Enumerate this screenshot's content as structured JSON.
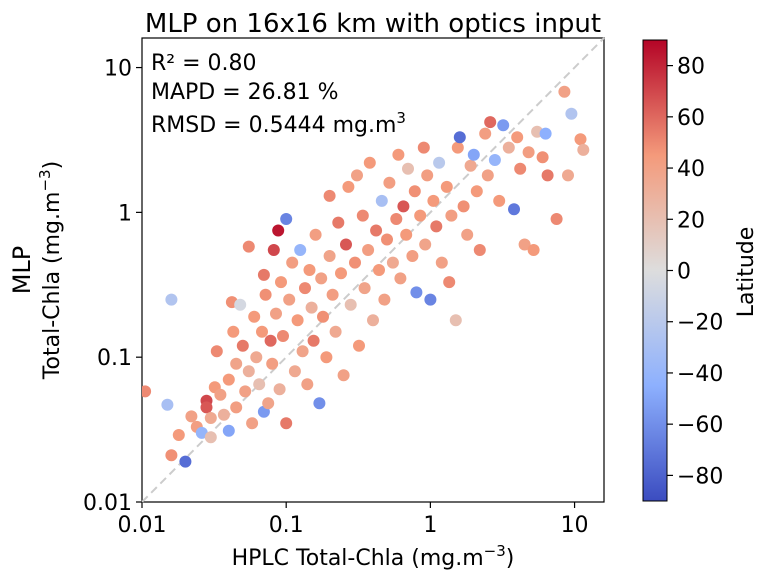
{
  "chart_data": {
    "type": "scatter",
    "title": "MLP on 16x16 km with optics input",
    "xlabel": "HPLC Total-Chla (mg.m",
    "xlabel_sup": "−3",
    "xlabel_end": ")",
    "ylabel_line1": "MLP",
    "ylabel_line2": "Total-Chla (mg.m",
    "ylabel_sup": "−3",
    "ylabel_end": ")",
    "x_scale": "log",
    "y_scale": "log",
    "xlim": [
      0.01,
      16
    ],
    "ylim": [
      0.01,
      16
    ],
    "x_ticks": [
      0.01,
      0.1,
      1,
      10
    ],
    "x_tick_labels": [
      "0.01",
      "0.1",
      "1",
      "10"
    ],
    "y_ticks": [
      0.01,
      0.1,
      1,
      10
    ],
    "y_tick_labels": [
      "0.01",
      "0.1",
      "1",
      "10"
    ],
    "grid": false,
    "one_to_one_line": true,
    "annotations": {
      "r2": "R² = 0.80",
      "mapd": "MAPD = 26.81 %",
      "rmsd": "RMSD = 0.5444 mg.m",
      "rmsd_sup": "3"
    },
    "colorbar": {
      "label": "Latitude",
      "colormap": "coolwarm",
      "range": [
        -90,
        90
      ],
      "ticks": [
        80,
        60,
        40,
        20,
        0,
        -20,
        -40,
        -60,
        -80
      ],
      "tick_labels": [
        "80",
        "60",
        "40",
        "20",
        "0",
        "−20",
        "−40",
        "−60",
        "−80"
      ],
      "low_color": "#3b4cc0",
      "mid_color": "#dddddd",
      "high_color": "#b40426"
    },
    "points": [
      {
        "x": 0.0105,
        "y": 0.058,
        "lat": 50
      },
      {
        "x": 0.016,
        "y": 0.25,
        "lat": -25
      },
      {
        "x": 0.015,
        "y": 0.047,
        "lat": -30
      },
      {
        "x": 0.016,
        "y": 0.021,
        "lat": 48
      },
      {
        "x": 0.018,
        "y": 0.029,
        "lat": 45
      },
      {
        "x": 0.02,
        "y": 0.019,
        "lat": -75
      },
      {
        "x": 0.022,
        "y": 0.039,
        "lat": 40
      },
      {
        "x": 0.024,
        "y": 0.033,
        "lat": 42
      },
      {
        "x": 0.026,
        "y": 0.03,
        "lat": -40
      },
      {
        "x": 0.028,
        "y": 0.05,
        "lat": 70
      },
      {
        "x": 0.028,
        "y": 0.045,
        "lat": 65
      },
      {
        "x": 0.03,
        "y": 0.028,
        "lat": 20
      },
      {
        "x": 0.03,
        "y": 0.038,
        "lat": 35
      },
      {
        "x": 0.032,
        "y": 0.062,
        "lat": 45
      },
      {
        "x": 0.033,
        "y": 0.11,
        "lat": 50
      },
      {
        "x": 0.035,
        "y": 0.055,
        "lat": 40
      },
      {
        "x": 0.037,
        "y": 0.04,
        "lat": 30
      },
      {
        "x": 0.04,
        "y": 0.07,
        "lat": 45
      },
      {
        "x": 0.04,
        "y": 0.031,
        "lat": -50
      },
      {
        "x": 0.042,
        "y": 0.24,
        "lat": 48
      },
      {
        "x": 0.043,
        "y": 0.15,
        "lat": 45
      },
      {
        "x": 0.045,
        "y": 0.09,
        "lat": 38
      },
      {
        "x": 0.045,
        "y": 0.045,
        "lat": 42
      },
      {
        "x": 0.048,
        "y": 0.23,
        "lat": -5
      },
      {
        "x": 0.05,
        "y": 0.12,
        "lat": 55
      },
      {
        "x": 0.052,
        "y": 0.058,
        "lat": 40
      },
      {
        "x": 0.055,
        "y": 0.58,
        "lat": 50
      },
      {
        "x": 0.055,
        "y": 0.08,
        "lat": 30
      },
      {
        "x": 0.058,
        "y": 0.035,
        "lat": 40
      },
      {
        "x": 0.06,
        "y": 0.19,
        "lat": 45
      },
      {
        "x": 0.062,
        "y": 0.1,
        "lat": 35
      },
      {
        "x": 0.065,
        "y": 0.065,
        "lat": 20
      },
      {
        "x": 0.068,
        "y": 0.15,
        "lat": 45
      },
      {
        "x": 0.07,
        "y": 0.37,
        "lat": 55
      },
      {
        "x": 0.07,
        "y": 0.042,
        "lat": -55
      },
      {
        "x": 0.072,
        "y": 0.27,
        "lat": 48
      },
      {
        "x": 0.075,
        "y": 0.048,
        "lat": 38
      },
      {
        "x": 0.078,
        "y": 0.13,
        "lat": 60
      },
      {
        "x": 0.08,
        "y": 0.09,
        "lat": 42
      },
      {
        "x": 0.082,
        "y": 0.55,
        "lat": 70
      },
      {
        "x": 0.085,
        "y": 0.2,
        "lat": 40
      },
      {
        "x": 0.088,
        "y": 0.75,
        "lat": 85
      },
      {
        "x": 0.09,
        "y": 0.06,
        "lat": 30
      },
      {
        "x": 0.092,
        "y": 0.33,
        "lat": 45
      },
      {
        "x": 0.095,
        "y": 0.14,
        "lat": 50
      },
      {
        "x": 0.1,
        "y": 0.9,
        "lat": -65
      },
      {
        "x": 0.1,
        "y": 0.035,
        "lat": 55
      },
      {
        "x": 0.105,
        "y": 0.25,
        "lat": 40
      },
      {
        "x": 0.11,
        "y": 0.45,
        "lat": 42
      },
      {
        "x": 0.115,
        "y": 0.08,
        "lat": 35
      },
      {
        "x": 0.12,
        "y": 0.18,
        "lat": 45
      },
      {
        "x": 0.125,
        "y": 0.55,
        "lat": -40
      },
      {
        "x": 0.13,
        "y": 0.11,
        "lat": 38
      },
      {
        "x": 0.135,
        "y": 0.3,
        "lat": 50
      },
      {
        "x": 0.14,
        "y": 0.065,
        "lat": 40
      },
      {
        "x": 0.145,
        "y": 0.4,
        "lat": 45
      },
      {
        "x": 0.15,
        "y": 0.22,
        "lat": 30
      },
      {
        "x": 0.155,
        "y": 0.13,
        "lat": 55
      },
      {
        "x": 0.16,
        "y": 0.7,
        "lat": 42
      },
      {
        "x": 0.17,
        "y": 0.048,
        "lat": -60
      },
      {
        "x": 0.175,
        "y": 0.35,
        "lat": 40
      },
      {
        "x": 0.18,
        "y": 0.19,
        "lat": 48
      },
      {
        "x": 0.19,
        "y": 0.1,
        "lat": 45
      },
      {
        "x": 0.2,
        "y": 1.3,
        "lat": 50
      },
      {
        "x": 0.2,
        "y": 0.5,
        "lat": 38
      },
      {
        "x": 0.21,
        "y": 0.27,
        "lat": 42
      },
      {
        "x": 0.22,
        "y": 0.15,
        "lat": 35
      },
      {
        "x": 0.23,
        "y": 0.85,
        "lat": 55
      },
      {
        "x": 0.24,
        "y": 0.38,
        "lat": 45
      },
      {
        "x": 0.25,
        "y": 0.075,
        "lat": 40
      },
      {
        "x": 0.26,
        "y": 0.6,
        "lat": 65
      },
      {
        "x": 0.27,
        "y": 1.5,
        "lat": 45
      },
      {
        "x": 0.28,
        "y": 0.23,
        "lat": 20
      },
      {
        "x": 0.3,
        "y": 0.45,
        "lat": 48
      },
      {
        "x": 0.31,
        "y": 1.8,
        "lat": 40
      },
      {
        "x": 0.32,
        "y": 0.12,
        "lat": 45
      },
      {
        "x": 0.34,
        "y": 0.95,
        "lat": 50
      },
      {
        "x": 0.35,
        "y": 0.3,
        "lat": 38
      },
      {
        "x": 0.37,
        "y": 0.55,
        "lat": 42
      },
      {
        "x": 0.38,
        "y": 2.2,
        "lat": 45
      },
      {
        "x": 0.4,
        "y": 0.18,
        "lat": 30
      },
      {
        "x": 0.42,
        "y": 0.75,
        "lat": 55
      },
      {
        "x": 0.44,
        "y": 0.4,
        "lat": 45
      },
      {
        "x": 0.46,
        "y": 1.2,
        "lat": -30
      },
      {
        "x": 0.48,
        "y": 0.25,
        "lat": 40
      },
      {
        "x": 0.5,
        "y": 0.65,
        "lat": 48
      },
      {
        "x": 0.52,
        "y": 1.6,
        "lat": 42
      },
      {
        "x": 0.55,
        "y": 0.45,
        "lat": 35
      },
      {
        "x": 0.58,
        "y": 0.9,
        "lat": 50
      },
      {
        "x": 0.6,
        "y": 2.5,
        "lat": 45
      },
      {
        "x": 0.62,
        "y": 0.35,
        "lat": 40
      },
      {
        "x": 0.65,
        "y": 1.1,
        "lat": 65
      },
      {
        "x": 0.68,
        "y": 0.7,
        "lat": 45
      },
      {
        "x": 0.7,
        "y": 2.0,
        "lat": 20
      },
      {
        "x": 0.75,
        "y": 0.5,
        "lat": 42
      },
      {
        "x": 0.78,
        "y": 1.4,
        "lat": 48
      },
      {
        "x": 0.8,
        "y": 0.28,
        "lat": -60
      },
      {
        "x": 0.85,
        "y": 0.95,
        "lat": 45
      },
      {
        "x": 0.9,
        "y": 2.8,
        "lat": 50
      },
      {
        "x": 0.92,
        "y": 0.6,
        "lat": 38
      },
      {
        "x": 0.95,
        "y": 1.8,
        "lat": 42
      },
      {
        "x": 1.0,
        "y": 0.25,
        "lat": -65
      },
      {
        "x": 1.05,
        "y": 1.2,
        "lat": 45
      },
      {
        "x": 1.1,
        "y": 0.8,
        "lat": 55
      },
      {
        "x": 1.15,
        "y": 2.2,
        "lat": -20
      },
      {
        "x": 1.2,
        "y": 0.45,
        "lat": 40
      },
      {
        "x": 1.3,
        "y": 1.5,
        "lat": 45
      },
      {
        "x": 1.35,
        "y": 0.33,
        "lat": 50
      },
      {
        "x": 1.4,
        "y": 0.95,
        "lat": 42
      },
      {
        "x": 1.5,
        "y": 0.18,
        "lat": 20
      },
      {
        "x": 1.55,
        "y": 2.8,
        "lat": 45
      },
      {
        "x": 1.6,
        "y": 3.3,
        "lat": -75
      },
      {
        "x": 1.7,
        "y": 1.1,
        "lat": 48
      },
      {
        "x": 1.8,
        "y": 0.7,
        "lat": 40
      },
      {
        "x": 1.9,
        "y": 2.1,
        "lat": 35
      },
      {
        "x": 2.0,
        "y": 2.5,
        "lat": -50
      },
      {
        "x": 2.1,
        "y": 1.4,
        "lat": 45
      },
      {
        "x": 2.2,
        "y": 0.55,
        "lat": 50
      },
      {
        "x": 2.4,
        "y": 3.5,
        "lat": 42
      },
      {
        "x": 2.5,
        "y": 1.8,
        "lat": 40
      },
      {
        "x": 2.6,
        "y": 4.2,
        "lat": 60
      },
      {
        "x": 2.8,
        "y": 2.3,
        "lat": -40
      },
      {
        "x": 3.0,
        "y": 1.2,
        "lat": 45
      },
      {
        "x": 3.2,
        "y": 4.0,
        "lat": -55
      },
      {
        "x": 3.5,
        "y": 2.8,
        "lat": 30
      },
      {
        "x": 3.8,
        "y": 1.05,
        "lat": -70
      },
      {
        "x": 4.0,
        "y": 3.3,
        "lat": 45
      },
      {
        "x": 4.2,
        "y": 2.0,
        "lat": 50
      },
      {
        "x": 4.5,
        "y": 0.6,
        "lat": 40
      },
      {
        "x": 4.8,
        "y": 2.6,
        "lat": 42
      },
      {
        "x": 5.2,
        "y": 0.55,
        "lat": 45
      },
      {
        "x": 5.5,
        "y": 3.6,
        "lat": 20
      },
      {
        "x": 6.0,
        "y": 2.4,
        "lat": 48
      },
      {
        "x": 6.3,
        "y": 3.5,
        "lat": -45
      },
      {
        "x": 6.5,
        "y": 1.8,
        "lat": 55
      },
      {
        "x": 7.5,
        "y": 0.9,
        "lat": 50
      },
      {
        "x": 8.5,
        "y": 6.8,
        "lat": 40
      },
      {
        "x": 9.0,
        "y": 1.8,
        "lat": 35
      },
      {
        "x": 9.5,
        "y": 4.8,
        "lat": -25
      },
      {
        "x": 11.0,
        "y": 3.2,
        "lat": 45
      },
      {
        "x": 11.5,
        "y": 2.7,
        "lat": 30
      }
    ]
  }
}
